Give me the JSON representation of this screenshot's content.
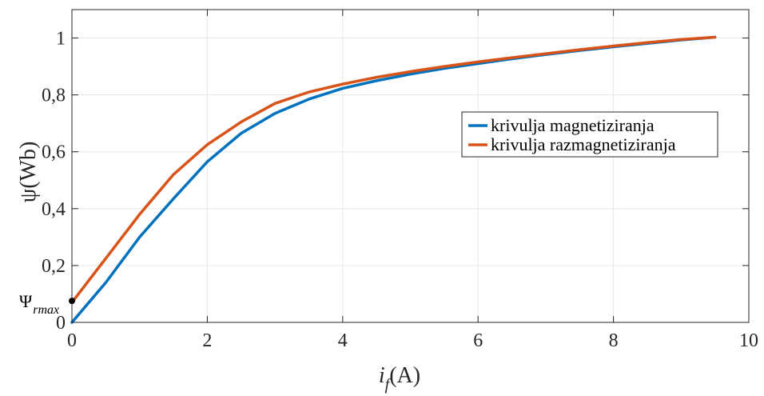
{
  "chart_data": {
    "type": "line",
    "xlabel": {
      "main": "i",
      "sub": "f",
      "unit": "(A)"
    },
    "ylabel": "ψ(Wb)",
    "xlim": [
      0,
      10
    ],
    "ylim": [
      0,
      1.1
    ],
    "xticks": [
      0,
      2,
      4,
      6,
      8,
      10
    ],
    "xtick_labels": [
      "0",
      "2",
      "4",
      "6",
      "8",
      "10"
    ],
    "yticks": [
      0,
      0.2,
      0.4,
      0.6,
      0.8,
      1
    ],
    "ytick_labels": [
      "0",
      "0,2",
      "0,4",
      "0,6",
      "0,8",
      "1"
    ],
    "grid": true,
    "legend_position": "right-center",
    "series": [
      {
        "name": "krivulja magnetiziranja",
        "color": "#0072BD",
        "x": [
          0,
          0.5,
          1,
          1.5,
          2,
          2.5,
          3,
          3.5,
          4,
          4.5,
          5,
          5.5,
          6,
          6.5,
          7,
          7.5,
          8,
          8.5,
          9,
          9.5
        ],
        "y": [
          0,
          0.14,
          0.3,
          0.435,
          0.565,
          0.665,
          0.735,
          0.785,
          0.823,
          0.85,
          0.873,
          0.893,
          0.91,
          0.927,
          0.942,
          0.956,
          0.969,
          0.981,
          0.993,
          1.003
        ]
      },
      {
        "name": "krivulja razmagnetiziranja",
        "color": "#D95319",
        "x": [
          0,
          0.5,
          1,
          1.5,
          2,
          2.5,
          3,
          3.5,
          4,
          4.5,
          5,
          5.5,
          6,
          6.5,
          7,
          7.5,
          8,
          8.5,
          9,
          9.5
        ],
        "y": [
          0.07,
          0.225,
          0.38,
          0.52,
          0.625,
          0.705,
          0.77,
          0.81,
          0.838,
          0.862,
          0.882,
          0.9,
          0.916,
          0.931,
          0.945,
          0.959,
          0.972,
          0.984,
          0.995,
          1.003
        ]
      }
    ],
    "annotations": [
      {
        "text": "Ψ",
        "sub": "rmax",
        "x": 0,
        "y": 0.07,
        "marker": "point"
      }
    ]
  }
}
